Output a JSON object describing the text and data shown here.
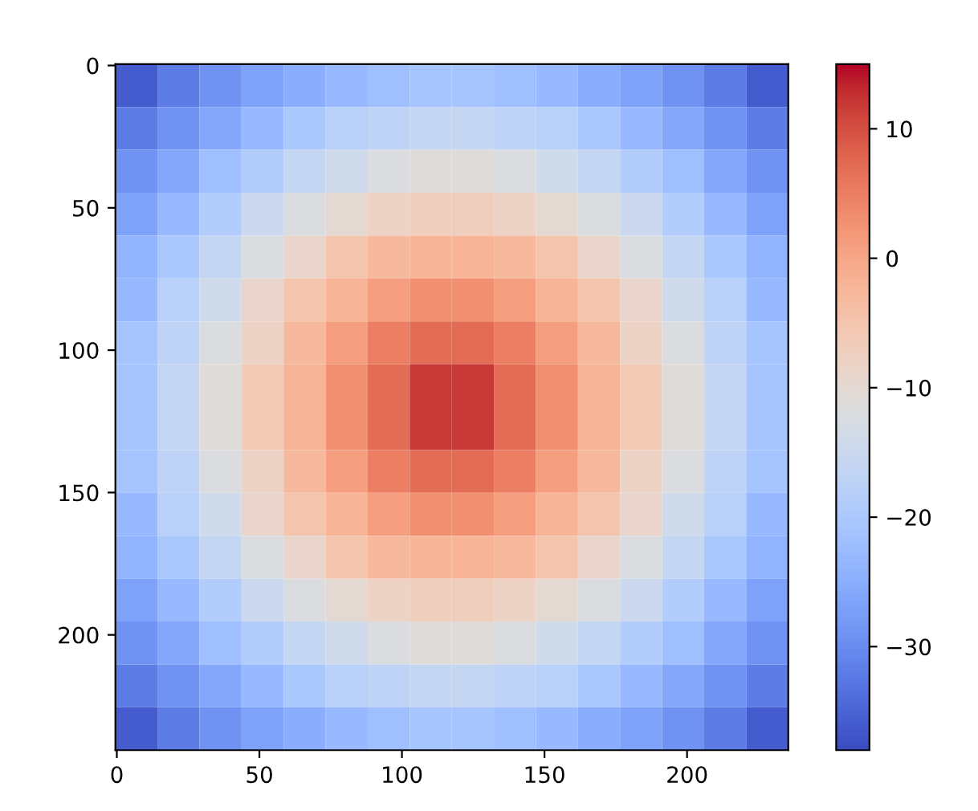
{
  "chart_data": {
    "type": "heatmap",
    "xlim": [
      -0.5,
      235.5
    ],
    "ylim": [
      240.5,
      -0.5
    ],
    "xticks": [
      0,
      50,
      100,
      150,
      200
    ],
    "yticks": [
      0,
      50,
      100,
      150,
      200
    ],
    "clim": [
      -38,
      15
    ],
    "cticks": [
      -30,
      -20,
      -10,
      0,
      10
    ],
    "cells": [
      [
        -36,
        -32,
        -29,
        -27,
        -25,
        -23,
        -22,
        -21,
        -21,
        -22,
        -23,
        -25,
        -27,
        -29,
        -32,
        -36
      ],
      [
        -32,
        -29,
        -26,
        -23,
        -20,
        -18,
        -17,
        -16,
        -16,
        -17,
        -18,
        -20,
        -23,
        -26,
        -29,
        -32
      ],
      [
        -29,
        -26,
        -22,
        -19,
        -16,
        -14,
        -12,
        -11,
        -11,
        -12,
        -14,
        -16,
        -19,
        -22,
        -26,
        -29
      ],
      [
        -27,
        -23,
        -19,
        -15,
        -12,
        -10,
        -8,
        -7,
        -7,
        -8,
        -10,
        -12,
        -15,
        -19,
        -23,
        -27
      ],
      [
        -24,
        -20,
        -16,
        -12,
        -9,
        -5,
        -3,
        -2,
        -2,
        -3,
        -5,
        -9,
        -12,
        -16,
        -20,
        -24
      ],
      [
        -23,
        -18,
        -14,
        -9,
        -5,
        -2,
        1,
        3,
        3,
        1,
        -2,
        -5,
        -9,
        -14,
        -18,
        -23
      ],
      [
        -21,
        -17,
        -12,
        -8,
        -3,
        1,
        5,
        7,
        7,
        5,
        1,
        -3,
        -8,
        -12,
        -17,
        -21
      ],
      [
        -21,
        -16,
        -11,
        -6,
        -2,
        3,
        7,
        12,
        12,
        7,
        3,
        -2,
        -6,
        -11,
        -16,
        -21
      ],
      [
        -21,
        -16,
        -11,
        -6,
        -2,
        3,
        7,
        12,
        12,
        7,
        3,
        -2,
        -6,
        -11,
        -16,
        -21
      ],
      [
        -21,
        -17,
        -12,
        -8,
        -3,
        1,
        5,
        7,
        7,
        5,
        1,
        -3,
        -8,
        -12,
        -17,
        -21
      ],
      [
        -23,
        -18,
        -14,
        -9,
        -5,
        -2,
        1,
        3,
        3,
        1,
        -2,
        -5,
        -9,
        -14,
        -18,
        -23
      ],
      [
        -24,
        -20,
        -16,
        -12,
        -9,
        -5,
        -3,
        -2,
        -2,
        -3,
        -5,
        -9,
        -12,
        -16,
        -20,
        -24
      ],
      [
        -27,
        -23,
        -19,
        -15,
        -12,
        -10,
        -8,
        -7,
        -7,
        -8,
        -10,
        -12,
        -15,
        -19,
        -23,
        -27
      ],
      [
        -29,
        -26,
        -22,
        -19,
        -16,
        -14,
        -12,
        -11,
        -11,
        -12,
        -14,
        -16,
        -19,
        -22,
        -26,
        -29
      ],
      [
        -32,
        -29,
        -26,
        -23,
        -20,
        -18,
        -17,
        -16,
        -16,
        -17,
        -18,
        -20,
        -23,
        -26,
        -29,
        -32
      ],
      [
        -36,
        -32,
        -29,
        -27,
        -25,
        -23,
        -22,
        -21,
        -21,
        -22,
        -23,
        -25,
        -27,
        -29,
        -32,
        -36
      ]
    ]
  }
}
